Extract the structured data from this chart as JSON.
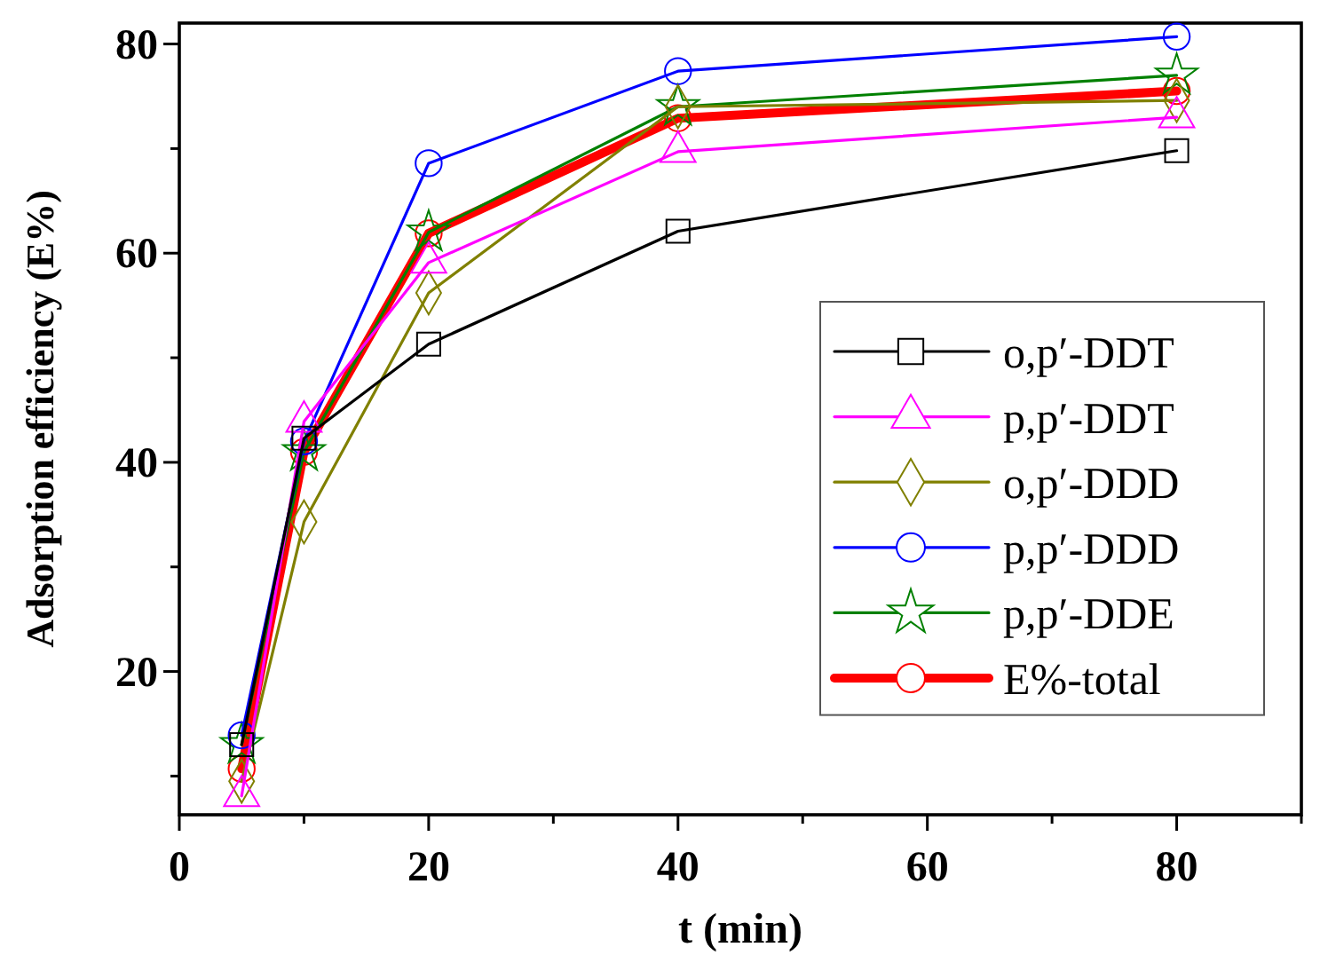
{
  "chart_data": {
    "type": "line",
    "xlabel": "t (min)",
    "ylabel": "Adsorption efficiency (E%)",
    "x": [
      5,
      10,
      20,
      40,
      80
    ],
    "xlim": [
      0,
      90
    ],
    "xticks": [
      0,
      {
        "value": 10,
        "label": null
      },
      20,
      {
        "value": 30,
        "label": null
      },
      40,
      {
        "value": 50,
        "label": null
      },
      60,
      {
        "value": 70,
        "label": null
      },
      80,
      {
        "value": 90,
        "label": null
      }
    ],
    "ylim": [
      6.3,
      82
    ],
    "yticks": [
      {
        "value": 10,
        "label": null
      },
      20,
      {
        "value": 30,
        "label": null
      },
      40,
      {
        "value": 50,
        "label": null
      },
      60,
      {
        "value": 70,
        "label": null
      },
      80
    ],
    "grid": false,
    "legend": "bottom right",
    "line_style": "solid",
    "series": [
      {
        "name": "o,p′-DDT",
        "color": "#000000",
        "marker": "square",
        "values": [
          13.0,
          42.3,
          51.3,
          62.1,
          69.8
        ]
      },
      {
        "name": "p,p′-DDT",
        "color": "#ff00ff",
        "marker": "triangle",
        "values": [
          8.1,
          43.9,
          59.1,
          69.7,
          73.0
        ]
      },
      {
        "name": "o,p′-DDD",
        "color": "#808000",
        "marker": "diamond",
        "values": [
          9.5,
          34.3,
          56.2,
          74.0,
          74.6
        ]
      },
      {
        "name": "p,p′-DDD",
        "color": "#0000ff",
        "marker": "circle",
        "values": [
          13.9,
          42.0,
          68.6,
          77.4,
          80.7
        ]
      },
      {
        "name": "p,p′-DDE",
        "color": "#008000",
        "marker": "star",
        "values": [
          13.0,
          41.0,
          62.0,
          74.0,
          77.0
        ]
      },
      {
        "name": "E%-total",
        "color": "#ff0000",
        "marker": "circle",
        "values": [
          10.7,
          41.0,
          61.9,
          72.9,
          75.5
        ]
      }
    ]
  }
}
